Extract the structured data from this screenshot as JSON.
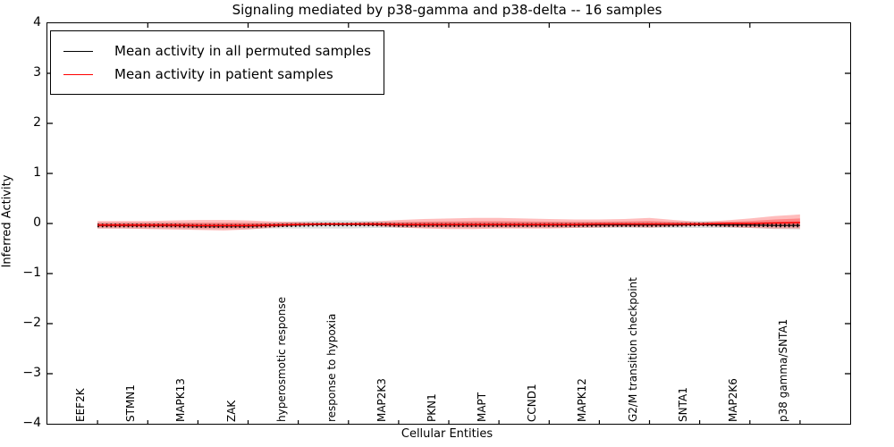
{
  "figure": {
    "title": "Signaling mediated by p38-gamma and p38-delta -- 16 samples",
    "xlabel": "Cellular Entities",
    "ylabel": "Inferred Activity"
  },
  "legend": {
    "position": "upper left",
    "items": [
      {
        "label": "Mean activity in all permuted samples",
        "color": "#000000"
      },
      {
        "label": "Mean activity in patient samples",
        "color": "#ff0000"
      }
    ]
  },
  "chart_data": {
    "type": "line",
    "title": "Signaling mediated by p38-gamma and p38-delta -- 16 samples",
    "xlabel": "Cellular Entities",
    "ylabel": "Inferred Activity",
    "xlim": [
      0,
      16
    ],
    "ylim": [
      -4,
      4
    ],
    "grid": false,
    "legend_position": "upper left",
    "ytick_labels": [
      "4",
      "3",
      "2",
      "1",
      "0",
      "−1",
      "−2",
      "−3",
      "−4"
    ],
    "ytick_values": [
      4,
      3,
      2,
      1,
      0,
      -1,
      -2,
      -3,
      -4
    ],
    "categories": [
      "EEF2K",
      "STMN1",
      "MAPK13",
      "ZAK",
      "hyperosmotic response",
      "response to hypoxia",
      "MAP2K3",
      "PKN1",
      "MAPT",
      "CCND1",
      "MAPK12",
      "G2/M transition checkpoint",
      "SNTA1",
      "MAP2K6",
      "p38 gamma/SNTA1"
    ],
    "category_x": [
      1,
      2,
      3,
      4,
      5,
      6,
      7,
      8,
      9,
      10,
      11,
      12,
      13,
      14,
      15
    ],
    "top_tick_x": [
      2,
      4,
      6,
      8,
      10,
      12,
      14
    ],
    "colors": {
      "patient": "#ff0000",
      "permuted": "#000000",
      "patient_band": "#ff2222",
      "permuted_band": "#999999"
    },
    "profile": {
      "x": [
        1,
        1.5,
        2,
        2.5,
        3,
        3.5,
        4,
        4.5,
        5,
        5.5,
        6,
        6.5,
        7,
        7.5,
        8,
        8.5,
        9,
        9.5,
        10,
        10.5,
        11,
        11.5,
        12,
        12.5,
        13,
        13.5,
        14,
        14.5,
        15
      ],
      "patient_mean": [
        -0.03,
        -0.03,
        -0.03,
        -0.03,
        -0.04,
        -0.04,
        -0.04,
        -0.03,
        -0.02,
        -0.01,
        -0.01,
        -0.01,
        -0.02,
        -0.02,
        -0.02,
        -0.02,
        -0.02,
        -0.02,
        -0.02,
        -0.02,
        -0.01,
        -0.01,
        -0.01,
        -0.01,
        -0.01,
        0.0,
        0.0,
        0.01,
        0.02
      ],
      "patient_band_top": [
        0.05,
        0.05,
        0.05,
        0.06,
        0.07,
        0.07,
        0.06,
        0.04,
        0.03,
        0.02,
        0.02,
        0.04,
        0.07,
        0.09,
        0.1,
        0.11,
        0.11,
        0.1,
        0.09,
        0.08,
        0.08,
        0.09,
        0.11,
        0.07,
        0.03,
        0.06,
        0.1,
        0.15,
        0.18
      ],
      "patient_band_bottom": [
        -0.1,
        -0.1,
        -0.11,
        -0.12,
        -0.13,
        -0.14,
        -0.12,
        -0.08,
        -0.05,
        -0.03,
        -0.03,
        -0.05,
        -0.08,
        -0.1,
        -0.11,
        -0.11,
        -0.1,
        -0.1,
        -0.1,
        -0.09,
        -0.08,
        -0.07,
        -0.08,
        -0.06,
        -0.05,
        -0.07,
        -0.09,
        -0.1,
        -0.1
      ],
      "permuted_mean": [
        -0.04,
        -0.04,
        -0.04,
        -0.04,
        -0.05,
        -0.05,
        -0.05,
        -0.04,
        -0.03,
        -0.02,
        -0.02,
        -0.02,
        -0.03,
        -0.03,
        -0.03,
        -0.03,
        -0.03,
        -0.03,
        -0.03,
        -0.03,
        -0.03,
        -0.03,
        -0.03,
        -0.03,
        -0.02,
        -0.03,
        -0.03,
        -0.04,
        -0.04
      ],
      "permuted_halfwidth": [
        0.06,
        0.06,
        0.06,
        0.06,
        0.06,
        0.06,
        0.06,
        0.06,
        0.07,
        0.08,
        0.08,
        0.07,
        0.06,
        0.06,
        0.06,
        0.06,
        0.06,
        0.06,
        0.06,
        0.06,
        0.06,
        0.06,
        0.06,
        0.06,
        0.07,
        0.06,
        0.06,
        0.07,
        0.08
      ]
    },
    "series": [
      {
        "name": "Mean activity in all permuted samples",
        "color": "#000000",
        "style": "solid line with dense tick markers, gray std band"
      },
      {
        "name": "Mean activity in patient samples",
        "color": "#ff0000",
        "style": "solid line with translucent red std band"
      }
    ]
  }
}
